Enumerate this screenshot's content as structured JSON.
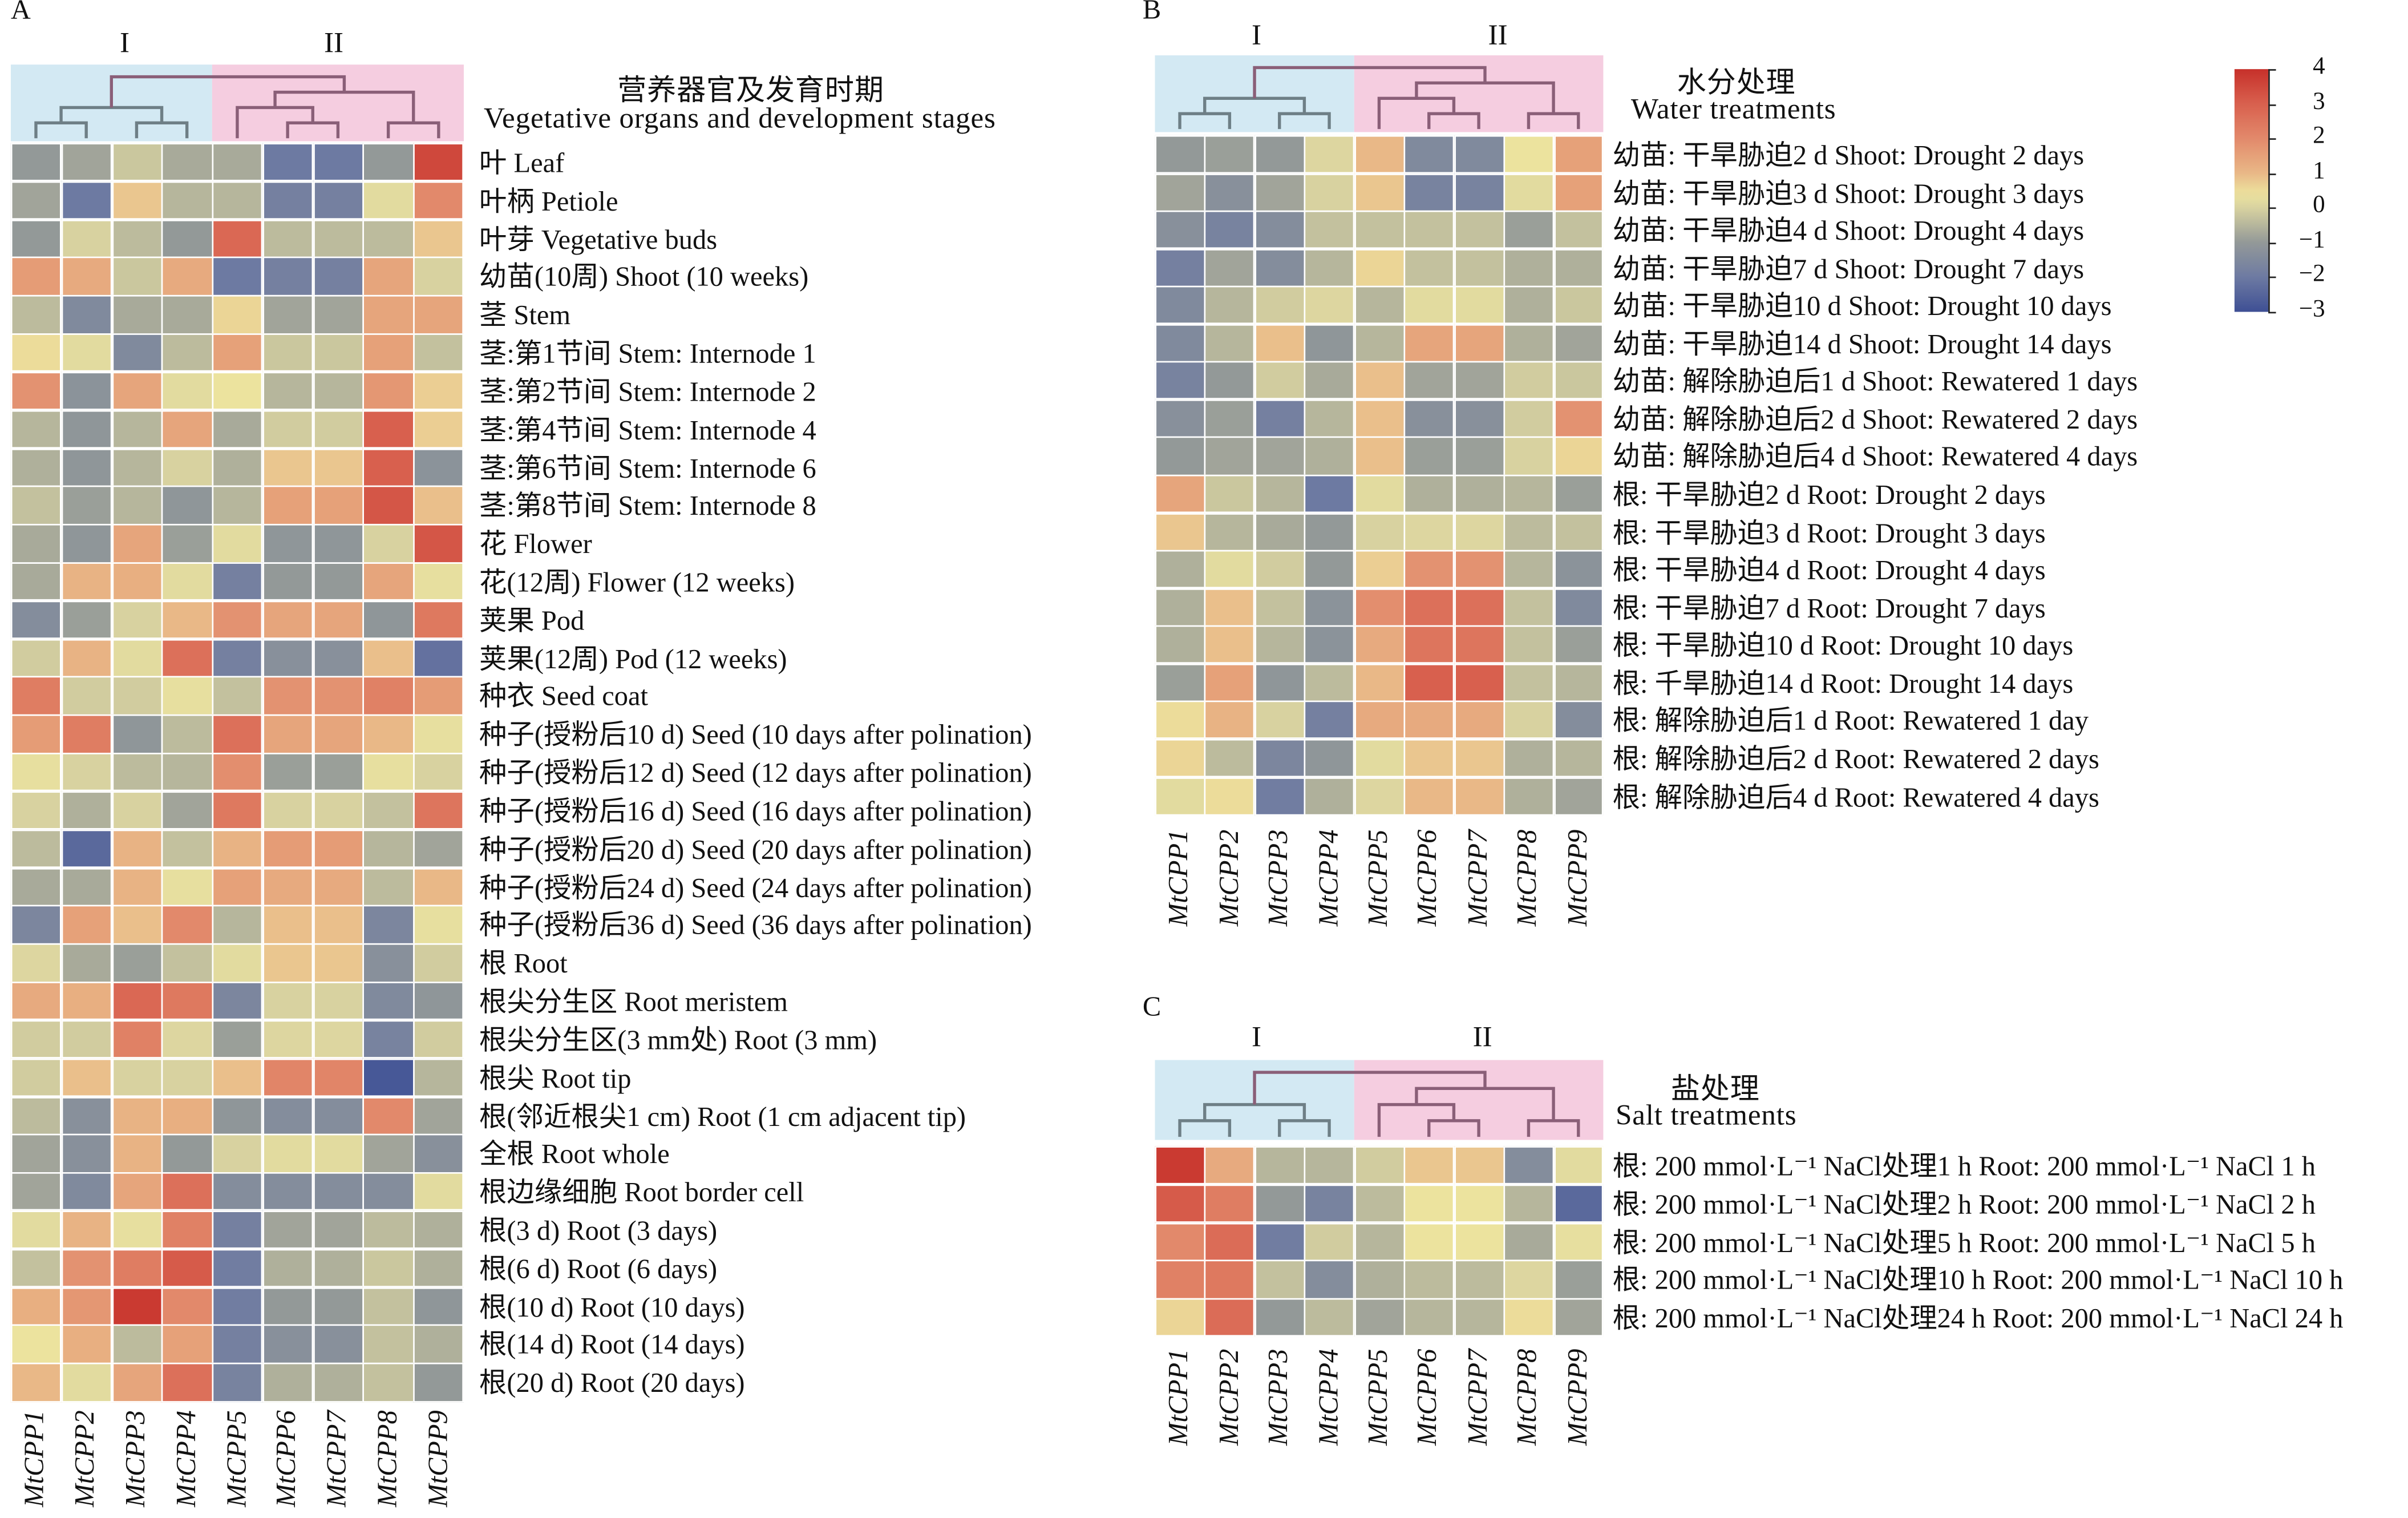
{
  "chart_data": [
    {
      "type": "heatmap",
      "panel": "A",
      "title_cn": "营养器官及发育时期",
      "title_en": "Vegetative organs and development stages",
      "clusters": [
        "I",
        "II"
      ],
      "columns": [
        "MtCPP1",
        "MtCPP2",
        "MtCPP3",
        "MtCPP4",
        "MtCPP5",
        "MtCPP6",
        "MtCPP7",
        "MtCPP8",
        "MtCPP9"
      ],
      "column_dendrogram": [
        [
          [
            0,
            1
          ],
          [
            2,
            3
          ]
        ],
        [
          [
            4,
            [
              5,
              6
            ]
          ],
          [
            7,
            8
          ]
        ]
      ],
      "rows": [
        "叶 Leaf",
        "叶柄 Petiole",
        "叶芽 Vegetative buds",
        "幼苗(10周) Shoot (10 weeks)",
        "茎 Stem",
        "茎:第1节间 Stem: Internode 1",
        "茎:第2节间 Stem: Internode 2",
        "茎:第4节间 Stem: Internode 4",
        "茎:第6节间 Stem: Internode 6",
        "茎:第8节间 Stem: Internode 8",
        "花 Flower",
        "花(12周) Flower (12 weeks)",
        "荚果 Pod",
        "荚果(12周) Pod (12 weeks)",
        "种衣 Seed coat",
        "种子(授粉后10 d) Seed (10 days after polination)",
        "种子(授粉后12 d) Seed (12 days after polination)",
        "种子(授粉后16 d) Seed (16 days after polination)",
        "种子(授粉后20 d) Seed (20 days after polination)",
        "种子(授粉后24 d) Seed (24 days after polination)",
        "种子(授粉后36 d) Seed (36 days after polination)",
        "根 Root",
        "根尖分生区 Root meristem",
        "根尖分生区(3 mm处) Root (3 mm)",
        "根尖 Root tip",
        "根(邻近根尖1 cm) Root (1 cm adjacent tip)",
        "全根 Root whole",
        "根边缘细胞 Root border cell",
        "根(3 d) Root (3 days)",
        "根(6 d) Root (6 days)",
        "根(10 d) Root (10 days)",
        "根(14 d) Root (14 days)",
        "根(20 d) Root (20 days)"
      ],
      "values": [
        [
          -1,
          -0.8,
          -0.2,
          -0.7,
          -0.7,
          -2,
          -2,
          -1,
          3.5
        ],
        [
          -0.8,
          -2,
          0.8,
          -0.5,
          -0.5,
          -1.8,
          -1.8,
          0.2,
          2
        ],
        [
          -1,
          0,
          -0.4,
          -1,
          2.8,
          -0.4,
          -0.4,
          -0.4,
          0.8
        ],
        [
          1.6,
          1.3,
          -0.2,
          1.3,
          -2,
          -1.8,
          -1.8,
          1.4,
          0
        ],
        [
          -0.4,
          -1.5,
          -0.7,
          -0.7,
          0.6,
          -0.8,
          -0.8,
          1.4,
          1.4
        ],
        [
          0.5,
          0.2,
          -1.5,
          -0.4,
          1.5,
          -0.2,
          -0.2,
          1.5,
          -0.3
        ],
        [
          1.8,
          -1.2,
          1.4,
          0.2,
          0.4,
          -0.5,
          -0.5,
          1.7,
          0.7
        ],
        [
          -0.5,
          -1.1,
          -0.5,
          1.4,
          -0.7,
          -0.1,
          -0.1,
          3,
          0.7
        ],
        [
          -0.6,
          -1.1,
          -0.5,
          0,
          -0.6,
          0.8,
          0.8,
          3,
          -1.2
        ],
        [
          -0.3,
          -0.9,
          -0.5,
          -1.1,
          -0.5,
          1.5,
          1.5,
          3.2,
          0.9
        ],
        [
          -0.7,
          -1.1,
          1.4,
          -0.9,
          0.2,
          -1.1,
          -1.1,
          0,
          3.2
        ],
        [
          -0.7,
          1.1,
          1.2,
          0.2,
          -1.8,
          -1,
          -1,
          1.4,
          0.3
        ],
        [
          -1.4,
          -0.9,
          0,
          1,
          1.8,
          1.4,
          1.4,
          -1.1,
          2.4
        ],
        [
          -0.1,
          1.1,
          0.2,
          2.6,
          -1.8,
          -1.3,
          -1.3,
          0.9,
          -2.2
        ],
        [
          2.3,
          -0.1,
          -0.1,
          0.3,
          -0.3,
          1.8,
          1.8,
          2.2,
          1.6
        ],
        [
          1.6,
          2.3,
          -1.1,
          -0.4,
          2.6,
          1.4,
          1.4,
          1,
          0.3
        ],
        [
          0.3,
          0,
          -0.4,
          -0.5,
          1.9,
          -0.9,
          -0.9,
          0.3,
          0
        ],
        [
          0,
          -0.6,
          0,
          -0.8,
          2.4,
          0,
          0,
          -0.3,
          2.5
        ],
        [
          -0.4,
          -2.4,
          1.1,
          -0.3,
          1.1,
          1.6,
          1.6,
          -0.5,
          -0.8
        ],
        [
          -0.7,
          -0.7,
          1.1,
          0.3,
          1.5,
          1.3,
          1.3,
          -0.4,
          1
        ],
        [
          -1.6,
          1.5,
          0.9,
          2,
          -0.5,
          0.9,
          0.9,
          -1.6,
          0.3
        ],
        [
          0.1,
          -0.7,
          -0.9,
          -0.3,
          0.2,
          0.8,
          0.8,
          -1.3,
          -0.1
        ],
        [
          1.3,
          1.2,
          2.8,
          2.4,
          -1.6,
          0,
          0,
          -1.5,
          -1.1
        ],
        [
          -0.1,
          -0.1,
          2.2,
          0.1,
          -0.9,
          0.1,
          0.1,
          -1.7,
          -0.1
        ],
        [
          -0.1,
          0.9,
          0,
          0,
          0.9,
          2.1,
          2.1,
          -2.8,
          -0.5
        ],
        [
          -0.4,
          -1.3,
          1.1,
          1.2,
          -1.1,
          -1.4,
          -1.4,
          2,
          -0.8
        ],
        [
          -0.8,
          -1.3,
          1.1,
          -1,
          0,
          0.2,
          0.2,
          -0.8,
          -1.3
        ],
        [
          -0.8,
          -1.5,
          1.4,
          2.6,
          -1.4,
          -1.4,
          -1.4,
          -1.4,
          0.2
        ],
        [
          0.2,
          1.1,
          0.3,
          2.2,
          -1.8,
          -0.8,
          -0.8,
          -0.4,
          -0.6
        ],
        [
          -0.3,
          1.8,
          2.3,
          3.1,
          -1.9,
          -0.6,
          -0.6,
          -0.2,
          -0.6
        ],
        [
          1.2,
          1.7,
          3.8,
          2,
          -1.9,
          -1,
          -1,
          -0.3,
          -1.1
        ],
        [
          0.4,
          1.2,
          -0.4,
          1.5,
          -1.8,
          -1.3,
          -1.3,
          -0.3,
          -0.6
        ],
        [
          1,
          0.2,
          1.4,
          2.6,
          -1.7,
          -0.6,
          -0.6,
          -0.3,
          -1
        ]
      ]
    },
    {
      "type": "heatmap",
      "panel": "B",
      "title_cn": "水分处理",
      "title_en": "Water treatments",
      "clusters": [
        "I",
        "II"
      ],
      "columns": [
        "MtCPP1",
        "MtCPP2",
        "MtCPP3",
        "MtCPP4",
        "MtCPP5",
        "MtCPP6",
        "MtCPP7",
        "MtCPP8",
        "MtCPP9"
      ],
      "column_dendrogram": [
        [
          [
            0,
            1
          ],
          [
            2,
            3
          ]
        ],
        [
          [
            4,
            [
              5,
              6
            ]
          ],
          [
            7,
            8
          ]
        ]
      ],
      "rows": [
        "幼苗: 干旱胁迫2 d Shoot: Drought 2 days",
        "幼苗: 干旱胁迫3 d Shoot: Drought 3 days",
        "幼苗: 干旱胁迫4 d Shoot: Drought 4 days",
        "幼苗: 干旱胁迫7 d Shoot: Drought 7 days",
        "幼苗: 干旱胁迫10 d Shoot: Drought 10 days",
        "幼苗: 干旱胁迫14 d Shoot: Drought 14 days",
        "幼苗: 解除胁迫后1 d Shoot: Rewatered 1 days",
        "幼苗: 解除胁迫后2 d Shoot: Rewatered 2 days",
        "幼苗: 解除胁迫后4 d Shoot: Rewatered 4 days",
        "根: 干旱胁迫2 d Root: Drought 2 days",
        "根: 干旱胁迫3 d Root: Drought 3 days",
        "根: 干旱胁迫4 d Root: Drought 4 days",
        "根: 干旱胁迫7 d Root: Drought 7 days",
        "根: 干旱胁迫10 d Root: Drought 10 days",
        "根: 千旱胁迫14 d Root: Drought 14 days",
        "根: 解除胁迫后1 d Root: Rewatered 1 day",
        "根: 解除胁迫后2 d Root: Rewatered 2 days",
        "根: 解除胁迫后4 d Root: Rewatered 4 days"
      ],
      "values": [
        [
          -1,
          -0.9,
          -1,
          0.1,
          1,
          -1.5,
          -1.5,
          0.4,
          1.5
        ],
        [
          -0.8,
          -1.3,
          -0.8,
          0,
          0.8,
          -1.7,
          -1.7,
          0.2,
          1.5
        ],
        [
          -1.3,
          -1.7,
          -1.4,
          -0.3,
          -0.3,
          -0.3,
          -0.3,
          -0.9,
          -0.3
        ],
        [
          -1.8,
          -0.8,
          -1.4,
          -0.5,
          0.6,
          -0.3,
          -0.3,
          -0.6,
          -0.6
        ],
        [
          -1.5,
          -0.5,
          -0.1,
          0.1,
          -0.5,
          0.2,
          0.2,
          -0.6,
          -0.2
        ],
        [
          -1.5,
          -0.5,
          0.9,
          -1.1,
          -0.5,
          1.4,
          1.4,
          -0.6,
          -0.8
        ],
        [
          -1.7,
          -1,
          -0.1,
          -0.7,
          0.9,
          -0.8,
          -0.8,
          -0.1,
          -0.2
        ],
        [
          -1.3,
          -0.9,
          -1.8,
          -0.5,
          0.9,
          -1.3,
          -1.3,
          -0.1,
          1.8
        ],
        [
          -1,
          -0.8,
          -0.8,
          -0.6,
          0.9,
          -0.9,
          -0.9,
          0,
          0.6
        ],
        [
          1.4,
          -0.2,
          -0.5,
          -2,
          0.2,
          -0.6,
          -0.6,
          -0.5,
          -0.9
        ],
        [
          0.8,
          -0.5,
          -0.7,
          -1,
          0,
          0.1,
          0.1,
          -0.4,
          -0.3
        ],
        [
          -0.6,
          0.2,
          -0.1,
          -1,
          0.7,
          1.8,
          1.8,
          -0.5,
          -1.2
        ],
        [
          -0.6,
          0.9,
          -0.3,
          -1.2,
          1.9,
          2.6,
          2.6,
          -0.3,
          -1.5
        ],
        [
          -0.6,
          0.9,
          -0.5,
          -1.2,
          1.3,
          2.5,
          2.5,
          -0.3,
          -0.9
        ],
        [
          -0.9,
          1.5,
          -1.1,
          -0.4,
          1,
          3,
          3,
          -0.3,
          -0.5
        ],
        [
          0.5,
          1.1,
          0,
          -1.8,
          1.3,
          1.3,
          1.3,
          0,
          -1.4
        ],
        [
          0.6,
          -0.4,
          -1.6,
          -1.1,
          0.2,
          0.8,
          0.8,
          -0.6,
          -0.5
        ],
        [
          0.2,
          0.5,
          -1.9,
          -0.6,
          0.1,
          1,
          1,
          -0.6,
          -0.8
        ]
      ]
    },
    {
      "type": "heatmap",
      "panel": "C",
      "title_cn": "盐处理",
      "title_en": "Salt treatments",
      "clusters": [
        "I",
        "II"
      ],
      "columns": [
        "MtCPP1",
        "MtCPP2",
        "MtCPP3",
        "MtCPP4",
        "MtCPP5",
        "MtCPP6",
        "MtCPP7",
        "MtCPP8",
        "MtCPP9"
      ],
      "column_dendrogram": [
        [
          [
            0,
            1
          ],
          [
            2,
            3
          ]
        ],
        [
          [
            4,
            [
              5,
              6
            ]
          ],
          [
            7,
            8
          ]
        ]
      ],
      "rows": [
        "根: 200 mmol·L⁻¹ NaCl处理1 h Root: 200 mmol·L⁻¹ NaCl 1 h",
        "根: 200 mmol·L⁻¹ NaCl处理2 h Root: 200 mmol·L⁻¹ NaCl 2 h",
        "根: 200 mmol·L⁻¹ NaCl处理5 h Root: 200 mmol·L⁻¹ NaCl 5 h",
        "根: 200 mmol·L⁻¹ NaCl处理10 h Root: 200 mmol·L⁻¹ NaCl 10 h",
        "根: 200 mmol·L⁻¹ NaCl处理24 h Root: 200 mmol·L⁻¹ NaCl 24 h"
      ],
      "values": [
        [
          3.8,
          1.3,
          -0.5,
          -0.5,
          -0.1,
          0.8,
          0.8,
          -1.4,
          0.2
        ],
        [
          3.1,
          2.3,
          -1,
          -1.7,
          -0.4,
          0.4,
          0.4,
          -0.5,
          -2.4
        ],
        [
          2,
          2.7,
          -1.9,
          -0.1,
          -0.5,
          0.4,
          0.4,
          -0.7,
          0.3
        ],
        [
          2.2,
          2.4,
          -0.3,
          -1.4,
          -0.6,
          -0.4,
          -0.4,
          0.1,
          -0.9
        ],
        [
          0.6,
          2.7,
          -1,
          -0.4,
          -0.8,
          -0.5,
          -0.5,
          0.5,
          -0.8
        ]
      ]
    }
  ],
  "colorbar": {
    "ticks": [
      "4",
      "3",
      "2",
      "1",
      "0",
      "−1",
      "−2",
      "−3"
    ],
    "range": [
      -3,
      4
    ],
    "colors": {
      "low": "#3e4f94",
      "mid": "#ece3a0",
      "high": "#c6302a"
    }
  },
  "cluster_colors": {
    "I": "#d3e9f3",
    "II": "#f5cde0"
  }
}
